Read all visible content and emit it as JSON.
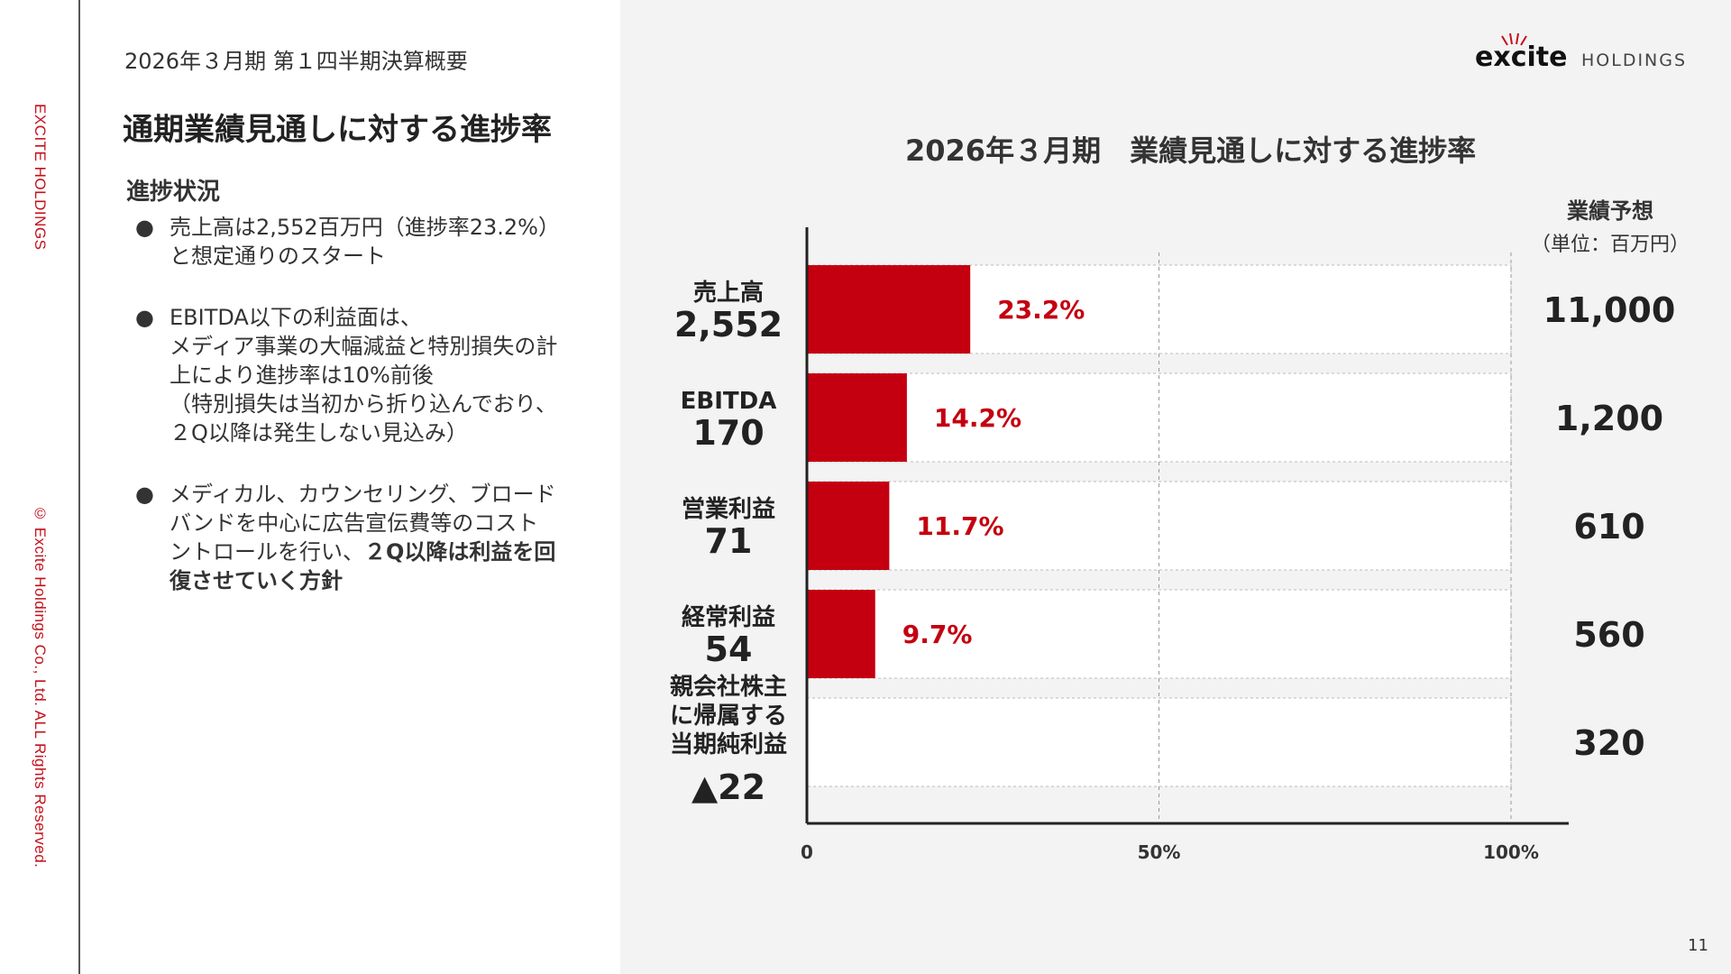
{
  "rail": {
    "brand_text": "EXCITE HOLDINGS",
    "copyright": "© Excite Holdings Co., Ltd. ALL Rights Reserved."
  },
  "header": {
    "doc_subtitle": "2026年３月期 第１四半期決算概要",
    "page_title": "通期業績見通しに対する進捗率",
    "logo_word": "excite",
    "logo_holdings": "HOLDINGS"
  },
  "progress": {
    "heading": "進捗状況",
    "bullets": [
      {
        "lines": [
          "売上高は2,552百万円（進捗率23.2%）",
          "と想定通りのスタート"
        ],
        "bold_lines": []
      },
      {
        "lines": [
          "EBITDA以下の利益面は、",
          "メディア事業の大幅減益と特別損失の計",
          "上により進捗率は10%前後",
          "（特別損失は当初から折り込んでおり、",
          "２Q以降は発生しない見込み）"
        ],
        "bold_lines": []
      },
      {
        "lines": [
          "メディカル、カウンセリング、ブロード",
          "バンドを中心に広告宣伝費等のコスト",
          "ントロールを行い、"
        ],
        "bold_lines": [
          "２Q以降は利益を回",
          "復させていく方針"
        ]
      }
    ]
  },
  "chart_data": {
    "type": "bar",
    "orientation": "horizontal",
    "title": "2026年３月期　業績見通しに対する進捗率",
    "forecast_header": "業績予想",
    "forecast_unit": "（単位：百万円）",
    "categories": [
      {
        "label_lines": [
          "売上高"
        ],
        "actual": "2,552"
      },
      {
        "label_lines": [
          "EBITDA"
        ],
        "actual": "170"
      },
      {
        "label_lines": [
          "営業利益"
        ],
        "actual": "71"
      },
      {
        "label_lines": [
          "経常利益"
        ],
        "actual": "54"
      },
      {
        "label_lines": [
          "親会社株主",
          "に帰属する",
          "当期純利益"
        ],
        "actual": "▲22"
      }
    ],
    "values": [
      23.2,
      14.2,
      11.7,
      9.7,
      null
    ],
    "value_labels": [
      "23.2%",
      "14.2%",
      "11.7%",
      "9.7%",
      ""
    ],
    "forecast": [
      "11,000",
      "1,200",
      "610",
      "560",
      "320"
    ],
    "x_ticks": [
      "0",
      "50%",
      "100%"
    ],
    "xlim": [
      0,
      100
    ],
    "bar_color": "#c40010",
    "label_color": "#c40010",
    "grid": true
  },
  "page_number": "11"
}
